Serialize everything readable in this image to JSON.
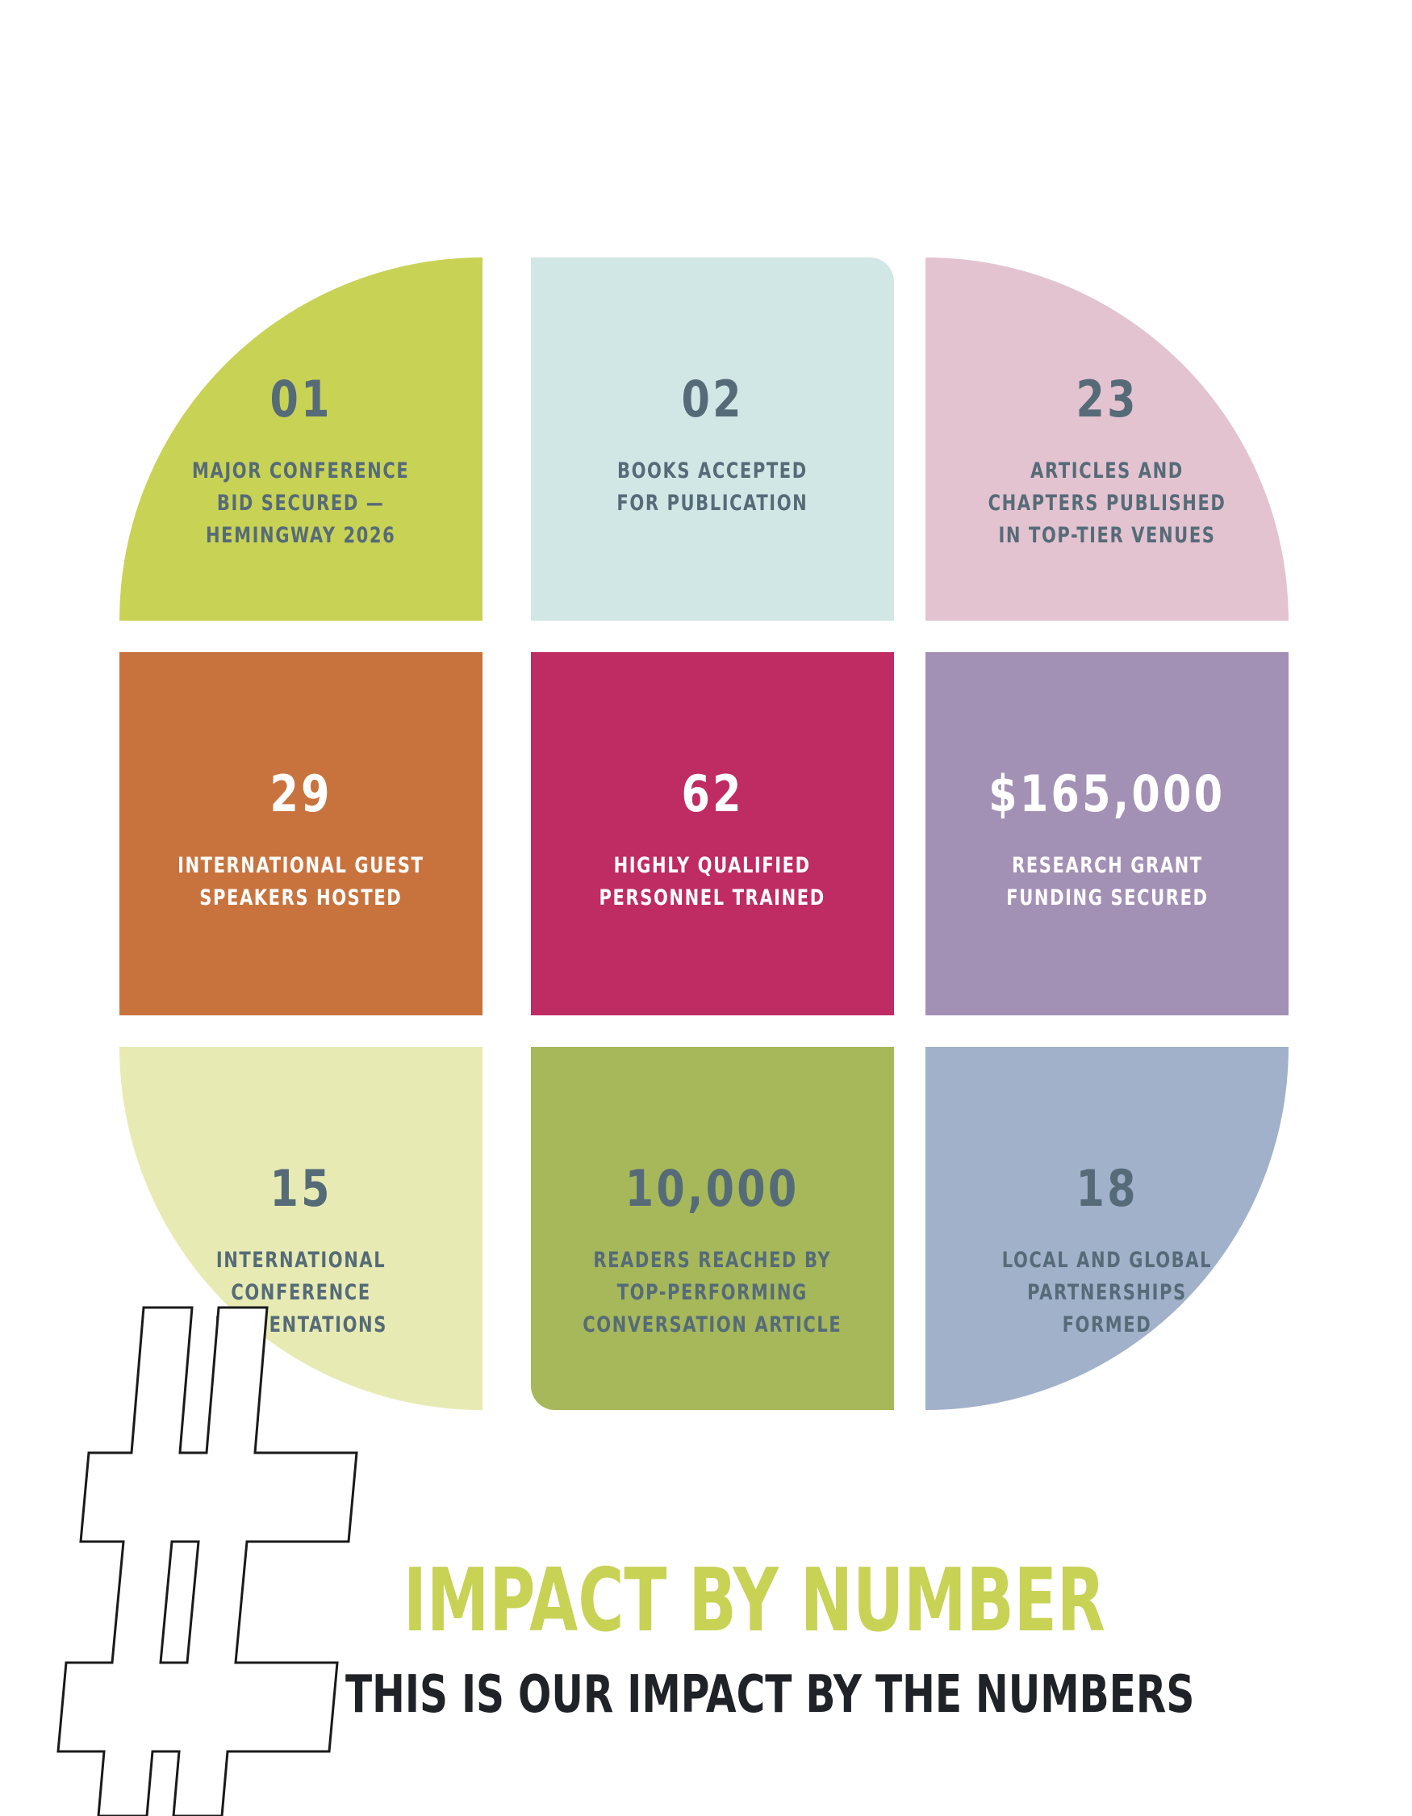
{
  "tiles": [
    {
      "number": "01",
      "label": "MAJOR CONFERENCE\nBID SECURED —\nHEMINGWAY 2026"
    },
    {
      "number": "02",
      "label": "BOOKS ACCEPTED\nFOR PUBLICATION"
    },
    {
      "number": "23",
      "label": "ARTICLES AND\nCHAPTERS PUBLISHED\nIN TOP-TIER VENUES"
    },
    {
      "number": "29",
      "label": "INTERNATIONAL GUEST\nSPEAKERS HOSTED"
    },
    {
      "number": "62",
      "label": "HIGHLY QUALIFIED\nPERSONNEL TRAINED"
    },
    {
      "number": "$165,000",
      "label": "RESEARCH GRANT\nFUNDING SECURED"
    },
    {
      "number": "15",
      "label": "INTERNATIONAL\nCONFERENCE\nPRESENTATIONS"
    },
    {
      "number": "10,000",
      "label": "READERS REACHED BY\nTOP-PERFORMING\nCONVERSATION ARTICLE"
    },
    {
      "number": "18",
      "label": "LOCAL AND GLOBAL\nPARTNERSHIPS\nFORMED"
    }
  ],
  "footer": {
    "title": "IMPACT BY NUMBER",
    "subtitle": "THIS IS OUR IMPACT BY THE NUMBERS"
  },
  "colors": {
    "lime": "#c8d255",
    "mint": "#d1e7e5",
    "pink": "#e3c3d0",
    "orange": "#c8733e",
    "magenta": "#bf2b63",
    "lavender": "#a390b5",
    "pale-yellow": "#e7ebb3",
    "olive": "#a6b85a",
    "slate-blue": "#a1b1ca",
    "text-dark": "#566b78"
  },
  "icons": {
    "decoration": "hashtag-outline-icon"
  }
}
